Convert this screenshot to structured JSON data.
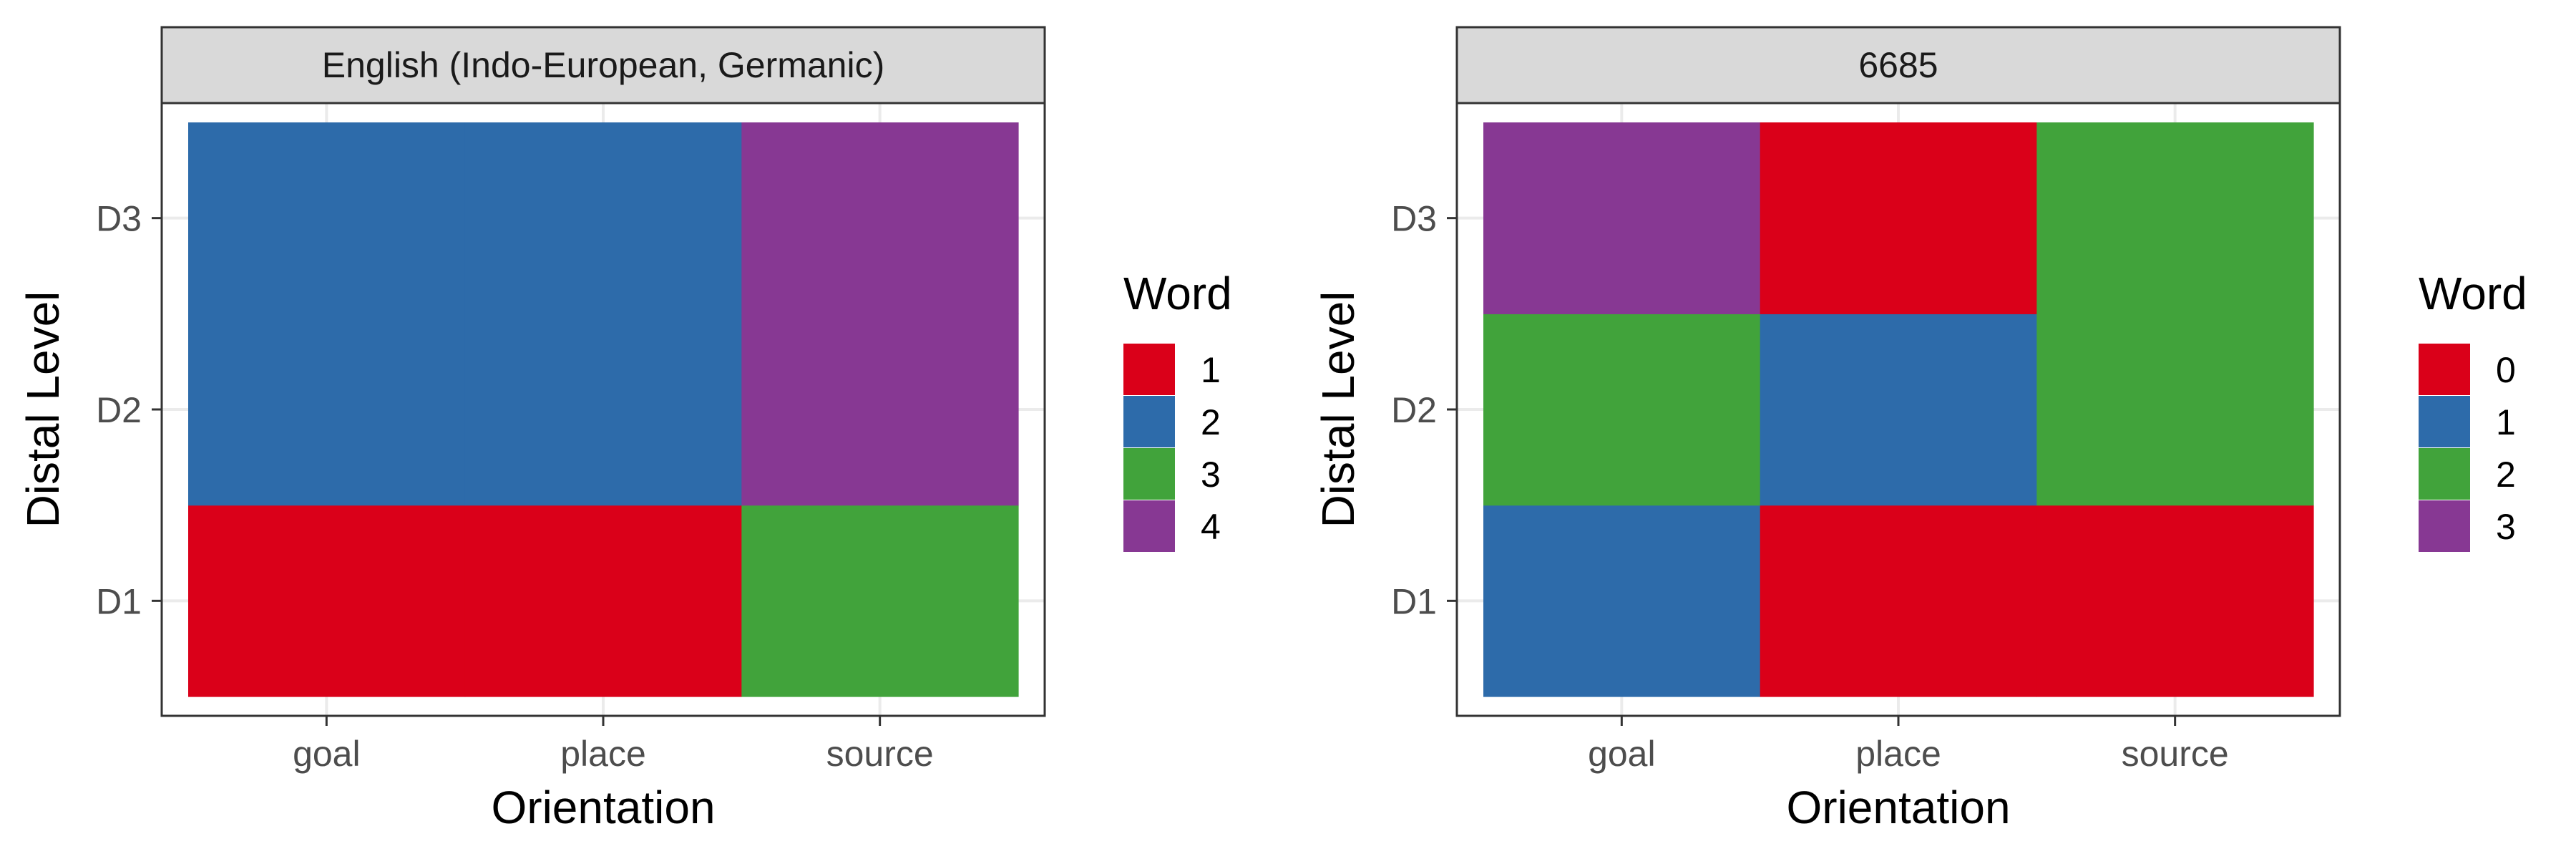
{
  "chart_data": [
    {
      "type": "heatmap",
      "title": "English (Indo-European, Germanic)",
      "xlabel": "Orientation",
      "ylabel": "Distal Level",
      "x_categories": [
        "goal",
        "place",
        "source"
      ],
      "y_categories": [
        "D1",
        "D2",
        "D3"
      ],
      "cells": [
        {
          "x": "goal",
          "y": "D1",
          "value": "1"
        },
        {
          "x": "place",
          "y": "D1",
          "value": "1"
        },
        {
          "x": "source",
          "y": "D1",
          "value": "3"
        },
        {
          "x": "goal",
          "y": "D2",
          "value": "2"
        },
        {
          "x": "place",
          "y": "D2",
          "value": "2"
        },
        {
          "x": "source",
          "y": "D2",
          "value": "4"
        },
        {
          "x": "goal",
          "y": "D3",
          "value": "2"
        },
        {
          "x": "place",
          "y": "D3",
          "value": "2"
        },
        {
          "x": "source",
          "y": "D3",
          "value": "4"
        }
      ],
      "legend": {
        "title": "Word",
        "placement": "right",
        "entries": [
          {
            "label": "1",
            "color": "#DA0019"
          },
          {
            "label": "2",
            "color": "#2D6BAA"
          },
          {
            "label": "3",
            "color": "#41A33B"
          },
          {
            "label": "4",
            "color": "#873893"
          }
        ]
      },
      "grid": true
    },
    {
      "type": "heatmap",
      "title": "6685",
      "xlabel": "Orientation",
      "ylabel": "Distal Level",
      "x_categories": [
        "goal",
        "place",
        "source"
      ],
      "y_categories": [
        "D1",
        "D2",
        "D3"
      ],
      "cells": [
        {
          "x": "goal",
          "y": "D1",
          "value": "1"
        },
        {
          "x": "place",
          "y": "D1",
          "value": "0"
        },
        {
          "x": "source",
          "y": "D1",
          "value": "0"
        },
        {
          "x": "goal",
          "y": "D2",
          "value": "2"
        },
        {
          "x": "place",
          "y": "D2",
          "value": "1"
        },
        {
          "x": "source",
          "y": "D2",
          "value": "2"
        },
        {
          "x": "goal",
          "y": "D3",
          "value": "3"
        },
        {
          "x": "place",
          "y": "D3",
          "value": "0"
        },
        {
          "x": "source",
          "y": "D3",
          "value": "2"
        }
      ],
      "legend": {
        "title": "Word",
        "placement": "right",
        "entries": [
          {
            "label": "0",
            "color": "#DA0019"
          },
          {
            "label": "1",
            "color": "#2D6BAA"
          },
          {
            "label": "2",
            "color": "#41A33B"
          },
          {
            "label": "3",
            "color": "#873893"
          }
        ]
      },
      "grid": true
    }
  ]
}
